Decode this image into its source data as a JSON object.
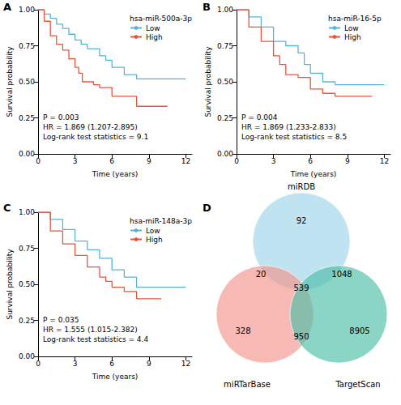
{
  "chart_data": [
    {
      "type": "line",
      "line_style": "step",
      "panel": "A",
      "legend_title": "hsa-miR-500a-3p",
      "x_label": "Time (years)",
      "y_label": "Survival probability",
      "annotations": [
        "P = 0.003",
        "HR = 1.869 (1.207-2.895)",
        "Log-rank test statistics = 9.1"
      ],
      "xlim": [
        0,
        12.5
      ],
      "xticks": [
        0,
        3,
        6,
        9,
        12
      ],
      "ylim": [
        0,
        1
      ],
      "yticks": [
        {
          "value": 0,
          "label": "0.00"
        },
        {
          "value": 0.25,
          "label": "0.25"
        },
        {
          "value": 0.5,
          "label": "0.50"
        },
        {
          "value": 0.75,
          "label": "0.75"
        },
        {
          "value": 1,
          "label": "1.00"
        }
      ],
      "grid": false,
      "series": [
        {
          "name": "Low",
          "color": "#56B4DA",
          "x": [
            0,
            0.5,
            1,
            1.5,
            2,
            2.5,
            3,
            3.5,
            4,
            5,
            5.5,
            6,
            7,
            8,
            12
          ],
          "values": [
            1,
            0.97,
            0.94,
            0.9,
            0.87,
            0.83,
            0.79,
            0.76,
            0.73,
            0.68,
            0.65,
            0.6,
            0.55,
            0.52,
            0.52
          ]
        },
        {
          "name": "High",
          "color": "#E7553C",
          "x": [
            0,
            0.5,
            1,
            1.5,
            2,
            2.5,
            3,
            3.3,
            3.6,
            4.5,
            5,
            6,
            7,
            8,
            10.5
          ],
          "values": [
            1,
            0.92,
            0.82,
            0.76,
            0.72,
            0.66,
            0.6,
            0.56,
            0.5,
            0.48,
            0.46,
            0.4,
            0.4,
            0.33,
            0.33
          ]
        }
      ]
    },
    {
      "type": "line",
      "line_style": "step",
      "panel": "B",
      "legend_title": "hsa-miR-16-5p",
      "x_label": "Time (years)",
      "y_label": "Survival probability",
      "annotations": [
        "P = 0.004",
        "HR = 1.869 (1.233-2.833)",
        "Log-rank test statistics = 8.5"
      ],
      "xlim": [
        0,
        12.5
      ],
      "xticks": [
        0,
        3,
        6,
        9,
        12
      ],
      "ylim": [
        0,
        1
      ],
      "yticks": [
        {
          "value": 0,
          "label": "0.00"
        },
        {
          "value": 0.25,
          "label": "0.25"
        },
        {
          "value": 0.5,
          "label": "0.50"
        },
        {
          "value": 0.75,
          "label": "0.75"
        },
        {
          "value": 1,
          "label": "1.00"
        }
      ],
      "grid": false,
      "series": [
        {
          "name": "Low",
          "color": "#56B4DA",
          "x": [
            0,
            1,
            2,
            3,
            4,
            5,
            5.5,
            6,
            7,
            8,
            12
          ],
          "values": [
            1,
            0.95,
            0.88,
            0.78,
            0.75,
            0.7,
            0.62,
            0.56,
            0.5,
            0.48,
            0.48
          ]
        },
        {
          "name": "High",
          "color": "#E7553C",
          "x": [
            0,
            1,
            2,
            3,
            3.5,
            4,
            5,
            6,
            7,
            8,
            11
          ],
          "values": [
            1,
            0.88,
            0.78,
            0.68,
            0.62,
            0.55,
            0.53,
            0.45,
            0.42,
            0.4,
            0.4
          ]
        }
      ]
    },
    {
      "type": "line",
      "line_style": "step",
      "panel": "C",
      "legend_title": "hsa-miR-148a-3p",
      "x_label": "Time (years)",
      "y_label": "Survival probability",
      "annotations": [
        "P = 0.035",
        "HR = 1.555 (1.015-2.382)",
        "Log-rank test statistics = 4.4"
      ],
      "xlim": [
        0,
        12.5
      ],
      "xticks": [
        0,
        3,
        6,
        9,
        12
      ],
      "ylim": [
        0,
        1
      ],
      "yticks": [
        {
          "value": 0,
          "label": "0.00"
        },
        {
          "value": 0.25,
          "label": "0.25"
        },
        {
          "value": 0.5,
          "label": "0.50"
        },
        {
          "value": 0.75,
          "label": "0.75"
        },
        {
          "value": 1,
          "label": "1.00"
        }
      ],
      "grid": false,
      "series": [
        {
          "name": "Low",
          "color": "#56B4DA",
          "x": [
            0,
            1,
            2,
            3,
            4,
            5,
            6,
            7,
            8,
            12
          ],
          "values": [
            1,
            0.95,
            0.88,
            0.8,
            0.74,
            0.68,
            0.6,
            0.55,
            0.48,
            0.48
          ]
        },
        {
          "name": "High",
          "color": "#E7553C",
          "x": [
            0,
            1,
            2,
            3,
            4,
            5,
            5.5,
            6,
            7,
            8,
            10
          ],
          "values": [
            1,
            0.87,
            0.78,
            0.7,
            0.62,
            0.55,
            0.52,
            0.48,
            0.45,
            0.4,
            0.4
          ]
        }
      ]
    },
    {
      "type": "venn",
      "panel": "D",
      "sets": [
        {
          "name": "miRDB",
          "color": "#9DD4E8"
        },
        {
          "name": "miRTarBase",
          "color": "#F1948A"
        },
        {
          "name": "TargetScan",
          "color": "#4DBFA8"
        }
      ],
      "regions": [
        {
          "sets": [
            "miRDB"
          ],
          "value": 92
        },
        {
          "sets": [
            "miRDB",
            "miRTarBase"
          ],
          "value": 20
        },
        {
          "sets": [
            "miRDB",
            "TargetScan"
          ],
          "value": 1048
        },
        {
          "sets": [
            "miRDB",
            "miRTarBase",
            "TargetScan"
          ],
          "value": 539
        },
        {
          "sets": [
            "miRTarBase"
          ],
          "value": 328
        },
        {
          "sets": [
            "miRTarBase",
            "TargetScan"
          ],
          "value": 950
        },
        {
          "sets": [
            "TargetScan"
          ],
          "value": 8905
        }
      ]
    }
  ]
}
